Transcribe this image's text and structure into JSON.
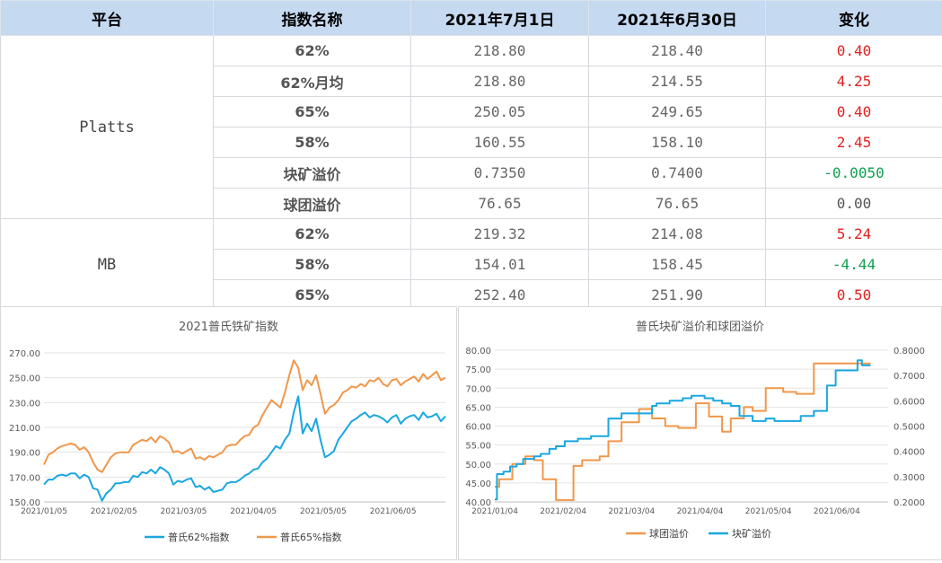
{
  "table": {
    "headers": [
      "平台",
      "指数名称",
      "2021年7月1日",
      "2021年6月30日",
      "变化"
    ],
    "groups": [
      {
        "platform": "Platts",
        "rows": [
          {
            "name": "62%",
            "v1": "218.80",
            "v2": "218.40",
            "chg": "0.40",
            "dir": "pos"
          },
          {
            "name": "62%月均",
            "v1": "218.80",
            "v2": "214.55",
            "chg": "4.25",
            "dir": "pos"
          },
          {
            "name": "65%",
            "v1": "250.05",
            "v2": "249.65",
            "chg": "0.40",
            "dir": "pos"
          },
          {
            "name": "58%",
            "v1": "160.55",
            "v2": "158.10",
            "chg": "2.45",
            "dir": "pos"
          },
          {
            "name": "块矿溢价",
            "v1": "0.7350",
            "v2": "0.7400",
            "chg": "-0.0050",
            "dir": "neg"
          },
          {
            "name": "球团溢价",
            "v1": "76.65",
            "v2": "76.65",
            "chg": "0.00",
            "dir": "zero"
          }
        ]
      },
      {
        "platform": "MB",
        "rows": [
          {
            "name": "62%",
            "v1": "219.32",
            "v2": "214.08",
            "chg": "5.24",
            "dir": "pos"
          },
          {
            "name": "58%",
            "v1": "154.01",
            "v2": "158.45",
            "chg": "-4.44",
            "dir": "neg"
          },
          {
            "name": "65%",
            "v1": "252.40",
            "v2": "251.90",
            "chg": "0.50",
            "dir": "pos"
          }
        ]
      }
    ],
    "colors": {
      "header_bg": "#c5d9f1",
      "positive": "#e02020",
      "negative": "#10a050"
    }
  },
  "chart_data": [
    {
      "type": "line",
      "title": "2021普氏铁矿指数",
      "xlabel": "",
      "ylabel": "",
      "x_ticks": [
        "2021/01/05",
        "2021/02/05",
        "2021/03/05",
        "2021/04/05",
        "2021/05/05",
        "2021/06/05"
      ],
      "ylim": [
        150,
        270
      ],
      "y_ticks": [
        "150.00",
        "170.00",
        "190.00",
        "210.00",
        "230.00",
        "250.00",
        "270.00"
      ],
      "grid": true,
      "legend": "bottom",
      "series": [
        {
          "name": "普氏62%指数",
          "color": "#1aa7e0",
          "x": [
            0,
            2,
            4,
            6,
            8,
            10,
            12,
            14,
            16,
            18,
            20,
            22,
            24,
            26,
            28,
            30,
            32,
            34,
            36,
            38,
            40,
            42,
            44,
            46,
            48,
            50,
            52,
            54,
            56,
            58,
            60,
            62,
            64,
            66,
            68,
            70,
            72,
            74,
            76,
            78,
            80,
            82,
            84,
            86,
            88,
            90,
            92,
            94,
            96,
            98,
            100,
            102,
            104,
            106,
            108,
            110,
            112,
            114,
            116,
            118,
            120,
            122,
            124,
            126,
            128,
            130,
            132,
            134,
            136,
            138,
            140,
            142,
            144,
            146,
            148,
            150,
            152,
            154,
            156,
            158,
            160,
            162,
            164,
            166,
            168,
            170,
            172,
            174,
            176,
            178,
            180
          ],
          "values": [
            164,
            168,
            168,
            171,
            172,
            171,
            173,
            173,
            169,
            172,
            170,
            161,
            160,
            151,
            157,
            160,
            165,
            165,
            166,
            166,
            171,
            170,
            174,
            173,
            176,
            173,
            178,
            176,
            173,
            164,
            167,
            166,
            168,
            169,
            162,
            163,
            160,
            162,
            158,
            159,
            160,
            165,
            166,
            166,
            168,
            171,
            173,
            176,
            177,
            182,
            185,
            190,
            195,
            193,
            200,
            205,
            222,
            235,
            205,
            213,
            207,
            217,
            200,
            186,
            188,
            191,
            200,
            205,
            210,
            215,
            217,
            220,
            222,
            218,
            220,
            219,
            217,
            214,
            218,
            220,
            213,
            217,
            219,
            220,
            216,
            222,
            218,
            219,
            221,
            215,
            219
          ]
        },
        {
          "name": "普氏65%指数",
          "color": "#f0974a",
          "x": [
            0,
            2,
            4,
            6,
            8,
            10,
            12,
            14,
            16,
            18,
            20,
            22,
            24,
            26,
            28,
            30,
            32,
            34,
            36,
            38,
            40,
            42,
            44,
            46,
            48,
            50,
            52,
            54,
            56,
            58,
            60,
            62,
            64,
            66,
            68,
            70,
            72,
            74,
            76,
            78,
            80,
            82,
            84,
            86,
            88,
            90,
            92,
            94,
            96,
            98,
            100,
            102,
            104,
            106,
            108,
            110,
            112,
            114,
            116,
            118,
            120,
            122,
            124,
            126,
            128,
            130,
            132,
            134,
            136,
            138,
            140,
            142,
            144,
            146,
            148,
            150,
            152,
            154,
            156,
            158,
            160,
            162,
            164,
            166,
            168,
            170,
            172,
            174,
            176,
            178,
            180
          ],
          "values": [
            180,
            188,
            190,
            193,
            195,
            196,
            197,
            196,
            192,
            194,
            190,
            182,
            176,
            174,
            180,
            186,
            189,
            190,
            190,
            190,
            196,
            198,
            200,
            199,
            202,
            198,
            203,
            201,
            198,
            190,
            191,
            189,
            191,
            193,
            185,
            186,
            184,
            187,
            186,
            188,
            190,
            195,
            196,
            196,
            200,
            203,
            204,
            210,
            212,
            220,
            226,
            232,
            229,
            226,
            238,
            252,
            264,
            258,
            240,
            248,
            244,
            252,
            237,
            221,
            226,
            228,
            232,
            238,
            240,
            243,
            242,
            245,
            243,
            248,
            247,
            250,
            245,
            243,
            248,
            249,
            244,
            247,
            249,
            251,
            247,
            253,
            249,
            252,
            255,
            248,
            250
          ]
        }
      ]
    },
    {
      "type": "line",
      "title": "普氏块矿溢价和球团溢价",
      "xlabel": "",
      "ylabel": "",
      "x_ticks": [
        "2021/01/04",
        "2021/02/04",
        "2021/03/04",
        "2021/04/04",
        "2021/05/04",
        "2021/06/04"
      ],
      "ylim": [
        40,
        80
      ],
      "y_ticks": [
        "40.00",
        "45.00",
        "50.00",
        "55.00",
        "60.00",
        "65.00",
        "70.00",
        "75.00",
        "80.00"
      ],
      "y2lim": [
        0.2,
        0.8
      ],
      "y2_ticks": [
        "0.2000",
        "0.3000",
        "0.4000",
        "0.5000",
        "0.6000",
        "0.7000",
        "0.8000"
      ],
      "grid": true,
      "legend": "bottom",
      "series": [
        {
          "name": "球团溢价",
          "color": "#f0974a",
          "axis": "left",
          "x": [
            0,
            2,
            2,
            8,
            8,
            14,
            14,
            18,
            18,
            22,
            22,
            28,
            28,
            36,
            36,
            40,
            40,
            48,
            48,
            52,
            52,
            58,
            58,
            66,
            66,
            72,
            72,
            78,
            78,
            84,
            84,
            92,
            92,
            98,
            98,
            104,
            104,
            108,
            108,
            114,
            114,
            118,
            118,
            124,
            124,
            132,
            132,
            138,
            138,
            146,
            146,
            150,
            150,
            156,
            156,
            160,
            160,
            166,
            166,
            172,
            172
          ],
          "values": [
            44,
            44,
            46,
            46,
            50,
            50,
            52,
            52,
            51,
            51,
            46,
            46,
            40.5,
            40.5,
            49.5,
            49.5,
            51,
            51,
            52,
            52,
            56,
            56,
            61,
            61,
            64.5,
            64.5,
            62,
            62,
            60,
            60,
            59.5,
            59.5,
            66,
            66,
            62.5,
            62.5,
            58.5,
            58.5,
            62,
            62,
            65,
            65,
            64,
            64,
            70,
            70,
            69,
            69,
            68.5,
            68.5,
            76.5,
            76.5,
            76.5,
            76.5,
            76.5,
            76.5,
            76.5,
            76.5,
            76.5,
            76.5,
            76.5
          ]
        },
        {
          "name": "块矿溢价",
          "color": "#1aa7e0",
          "axis": "right",
          "x": [
            0,
            1,
            1,
            4,
            4,
            7,
            7,
            10,
            10,
            13,
            13,
            18,
            18,
            21,
            21,
            25,
            25,
            28,
            28,
            32,
            32,
            38,
            38,
            44,
            44,
            52,
            52,
            58,
            58,
            64,
            64,
            72,
            72,
            74,
            74,
            80,
            80,
            86,
            86,
            90,
            90,
            96,
            96,
            100,
            100,
            104,
            104,
            108,
            108,
            112,
            112,
            118,
            118,
            124,
            124,
            128,
            128,
            132,
            132,
            136,
            136,
            140,
            140,
            146,
            146,
            150,
            150,
            152,
            152,
            156,
            156,
            160,
            160,
            166,
            166,
            168,
            168,
            172
          ],
          "values": [
            0.21,
            0.21,
            0.31,
            0.31,
            0.32,
            0.32,
            0.34,
            0.34,
            0.35,
            0.35,
            0.37,
            0.37,
            0.38,
            0.38,
            0.39,
            0.39,
            0.41,
            0.41,
            0.42,
            0.42,
            0.44,
            0.44,
            0.45,
            0.45,
            0.46,
            0.46,
            0.53,
            0.53,
            0.55,
            0.55,
            0.55,
            0.55,
            0.58,
            0.58,
            0.59,
            0.59,
            0.6,
            0.6,
            0.61,
            0.61,
            0.62,
            0.62,
            0.61,
            0.61,
            0.6,
            0.6,
            0.59,
            0.59,
            0.58,
            0.58,
            0.54,
            0.54,
            0.52,
            0.52,
            0.53,
            0.53,
            0.52,
            0.52,
            0.52,
            0.52,
            0.52,
            0.52,
            0.54,
            0.54,
            0.56,
            0.56,
            0.56,
            0.56,
            0.66,
            0.66,
            0.72,
            0.72,
            0.72,
            0.72,
            0.76,
            0.76,
            0.74,
            0.74
          ]
        }
      ]
    }
  ]
}
